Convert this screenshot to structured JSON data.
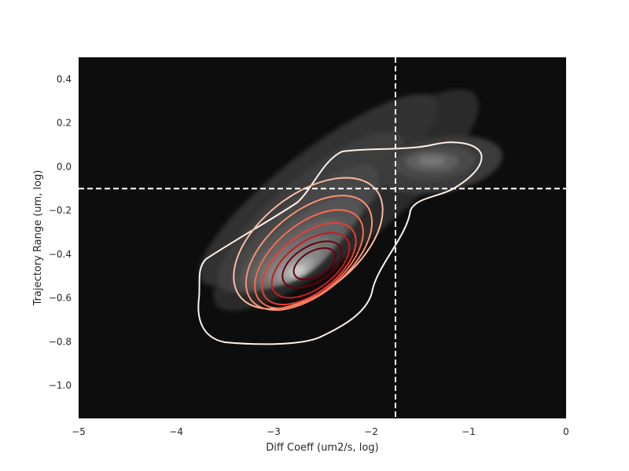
{
  "chart_data": {
    "type": "contour",
    "xlabel": "Diff Coeff (um2/s, log)",
    "ylabel": "Trajectory Range (um, log)",
    "xlim": [
      -5,
      0
    ],
    "ylim": [
      -1.15,
      0.5
    ],
    "x_ticks": [
      -5,
      -4,
      -3,
      -2,
      -1,
      0
    ],
    "y_ticks": [
      -1.0,
      -0.8,
      -0.6,
      -0.4,
      -0.2,
      0.0,
      0.2,
      0.4
    ],
    "x_tick_labels": [
      "−5",
      "−4",
      "−3",
      "−2",
      "−1",
      "0"
    ],
    "y_tick_labels": [
      "−1.0",
      "−0.8",
      "−0.6",
      "−0.4",
      "−0.2",
      "0.0",
      "0.2",
      "0.4"
    ],
    "background_color": "#0d0d0d",
    "grid": false,
    "reference_lines": {
      "vertical_x": -1.75,
      "horizontal_y": -0.1,
      "color": "#ffffff",
      "style": "dashed"
    },
    "filled_density": {
      "colormap": "greys",
      "peak": {
        "x": -2.6,
        "y": -0.45
      },
      "secondary_peak": {
        "x": -1.45,
        "y": 0.03
      }
    },
    "line_contours": {
      "colormap": "reds",
      "center": {
        "x": -2.65,
        "y": -0.46
      },
      "levels": 7,
      "colors": [
        "#fff0e8",
        "#fcbba1",
        "#fc9272",
        "#fb6a4a",
        "#ef3b2c",
        "#cb181d",
        "#67000d"
      ]
    }
  }
}
